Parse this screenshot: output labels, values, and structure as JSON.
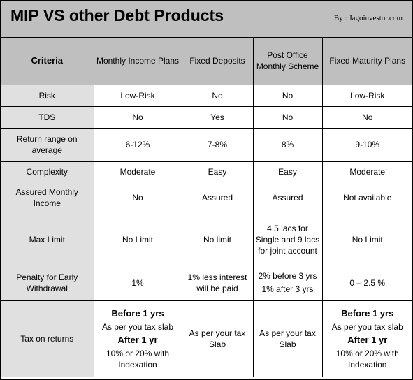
{
  "title": "MIP VS other Debt Products",
  "byline": "By : Jagoinvestor.com",
  "headers": [
    "Criteria",
    "Monthly Income Plans",
    "Fixed Deposits",
    "Post Office Monthly Scheme",
    "Fixed Maturity Plans"
  ],
  "rows": [
    {
      "criteria": "Risk",
      "mip": "Low-Risk",
      "fd": "No",
      "po": "No",
      "fmp": "Low-Risk"
    },
    {
      "criteria": "TDS",
      "mip": "No",
      "fd": "Yes",
      "po": "No",
      "fmp": "No"
    },
    {
      "criteria": "Return range on average",
      "mip": "6-12%",
      "fd": "7-8%",
      "po": "8%",
      "fmp": "9-10%"
    },
    {
      "criteria": "Complexity",
      "mip": "Moderate",
      "fd": "Easy",
      "po": "Easy",
      "fmp": "Moderate"
    },
    {
      "criteria": "Assured Monthly Income",
      "mip": "No",
      "fd": "Assured",
      "po": "Assured",
      "fmp": "Not available"
    },
    {
      "criteria": "Max Limit",
      "mip": "No Limit",
      "fd": "No limit",
      "po": "4.5 lacs for Single and 9 lacs for joint account",
      "fmp": "No Limit"
    },
    {
      "criteria": "Penalty for Early Withdrawal",
      "mip": "1%",
      "fd": "1% less interest will be paid",
      "po_line1": "2% before 3 yrs",
      "po_line2": "1% after 3 yrs",
      "fmp": "0 – 2.5 %"
    }
  ],
  "tax": {
    "criteria": "Tax on returns",
    "mip": {
      "h1": "Before 1 yrs",
      "t1": "As per you tax slab",
      "h2": "After 1 yr",
      "t2": "10% or 20% with Indexation"
    },
    "fd": "As per your tax Slab",
    "po": "As per your tax Slab",
    "fmp": {
      "h1": "Before 1 yrs",
      "t1": "As per you tax slab",
      "h2": "After 1 yr",
      "t2": "10% or 20% with Indexation"
    }
  }
}
